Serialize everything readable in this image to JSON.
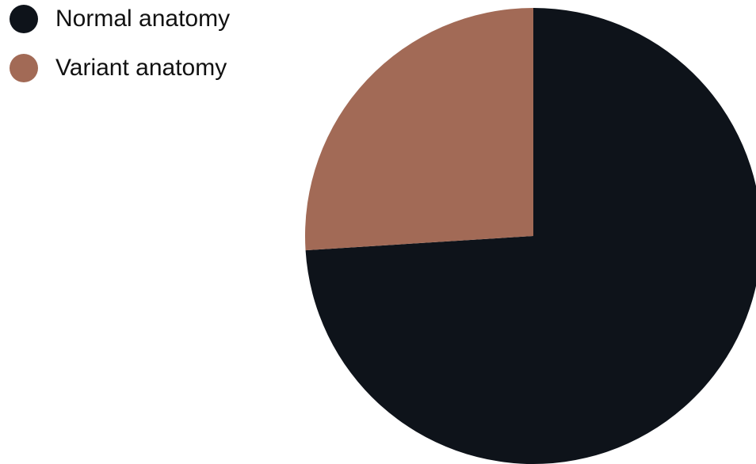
{
  "chart_data": {
    "type": "pie",
    "title": "",
    "legend_position": "top-left",
    "slices": [
      {
        "label": "Normal anatomy",
        "value": 74,
        "color": "#0e131a"
      },
      {
        "label": "Variant anatomy",
        "value": 26,
        "color": "#a26a56"
      }
    ]
  }
}
